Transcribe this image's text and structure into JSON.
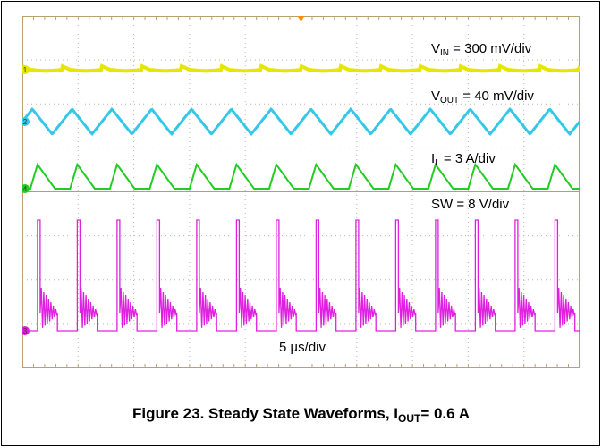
{
  "chart_data": {
    "type": "line",
    "title": "Figure 23. Steady State Waveforms, I_OUT= 0.6 A",
    "timebase": "5 µs/div",
    "grid": true,
    "divisions": {
      "x": 10,
      "y": 8
    },
    "switching_cycles_shown": 14,
    "series": [
      {
        "name": "V_IN",
        "scale": "300 mV/div",
        "channel": "1",
        "color": "#e6e600",
        "shape": "dc-with-small-ripple"
      },
      {
        "name": "V_OUT",
        "scale": "40 mV/div",
        "channel": "2",
        "color": "#33c8e8",
        "shape": "triangular-ripple"
      },
      {
        "name": "I_L",
        "scale": "3 A/div",
        "channel": "4",
        "color": "#22cc22",
        "shape": "sawtooth-pulses"
      },
      {
        "name": "SW",
        "scale": "8 V/div",
        "channel": "3",
        "color": "#e020e0",
        "shape": "switching-pulses-with-ringing"
      }
    ]
  },
  "labels": {
    "vin": {
      "main": "V",
      "sub": "IN",
      "rest": " = 300 mV/div"
    },
    "vout": {
      "main": "V",
      "sub": "OUT",
      "rest": " = 40 mV/div"
    },
    "il": {
      "main": "I",
      "sub": "L",
      "rest": " = 3 A/div"
    },
    "sw": {
      "text": "SW = 8 V/div"
    },
    "timebase": "5 µs/div"
  },
  "caption": {
    "pre": "Figure 23. Steady State Waveforms, I",
    "sub": "OUT",
    "post": "= 0.6 A"
  },
  "colors": {
    "grid": "#bfb6a8",
    "border": "#b8a070",
    "trigger": "#ff8c00"
  }
}
